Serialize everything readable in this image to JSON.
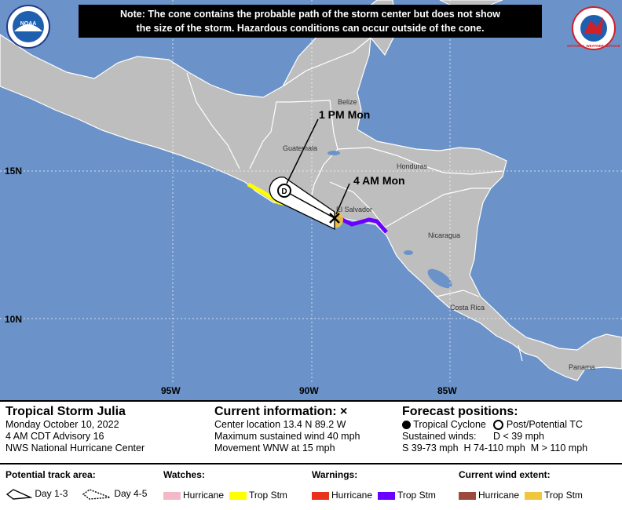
{
  "note": {
    "line1": "Note: The cone contains the probable path of the storm center but does not show",
    "line2": "the size of the storm. Hazardous conditions can occur outside of the cone."
  },
  "logos": {
    "left": "NOAA",
    "right": "NATIONAL WEATHER SERVICE"
  },
  "map": {
    "lat_labels": [
      "15N",
      "10N"
    ],
    "lon_labels": [
      "95W",
      "90W",
      "85W"
    ],
    "countries": [
      "Belize",
      "Guatemala",
      "Honduras",
      "El Salvador",
      "Nicaragua",
      "Costa Rica",
      "Panama"
    ],
    "forecast_labels": [
      "1 PM Mon",
      "4 AM Mon"
    ],
    "point_symbol": "D",
    "colors": {
      "ocean": "#6b93c9",
      "land": "#bebebe",
      "border": "#ffffff",
      "lake": "#6b93c9",
      "trop_stm_watch": "#ffff00",
      "trop_stm_warning": "#6a00ff",
      "hurricane_watch": "#f5b8c8",
      "hurricane_warning": "#e8321e",
      "hurricane_wind": "#9c4a3c",
      "trop_wind": "#f0c63c"
    }
  },
  "storm": {
    "name": "Tropical Storm Julia",
    "date": "Monday October 10, 2022",
    "advisory": "4 AM CDT Advisory 16",
    "center": "NWS National Hurricane Center"
  },
  "current": {
    "title": "Current information:",
    "symbol": "×",
    "location": "Center location 13.4 N 89.2 W",
    "wind": "Maximum sustained wind 40 mph",
    "movement": "Movement WNW at 15 mph"
  },
  "forecast": {
    "title": "Forecast positions:",
    "tropical": "Tropical Cyclone",
    "post": "Post/Potential TC",
    "sustained": "Sustained winds:",
    "d": "D < 39 mph",
    "scale": "S 39-73 mph  H 74-110 mph  M > 110 mph"
  },
  "legend": {
    "track_title": "Potential track area:",
    "day13": "Day 1-3",
    "day45": "Day 4-5",
    "watches_title": "Watches:",
    "warnings_title": "Warnings:",
    "wind_title": "Current wind extent:",
    "hurricane": "Hurricane",
    "trop_stm": "Trop Stm"
  }
}
